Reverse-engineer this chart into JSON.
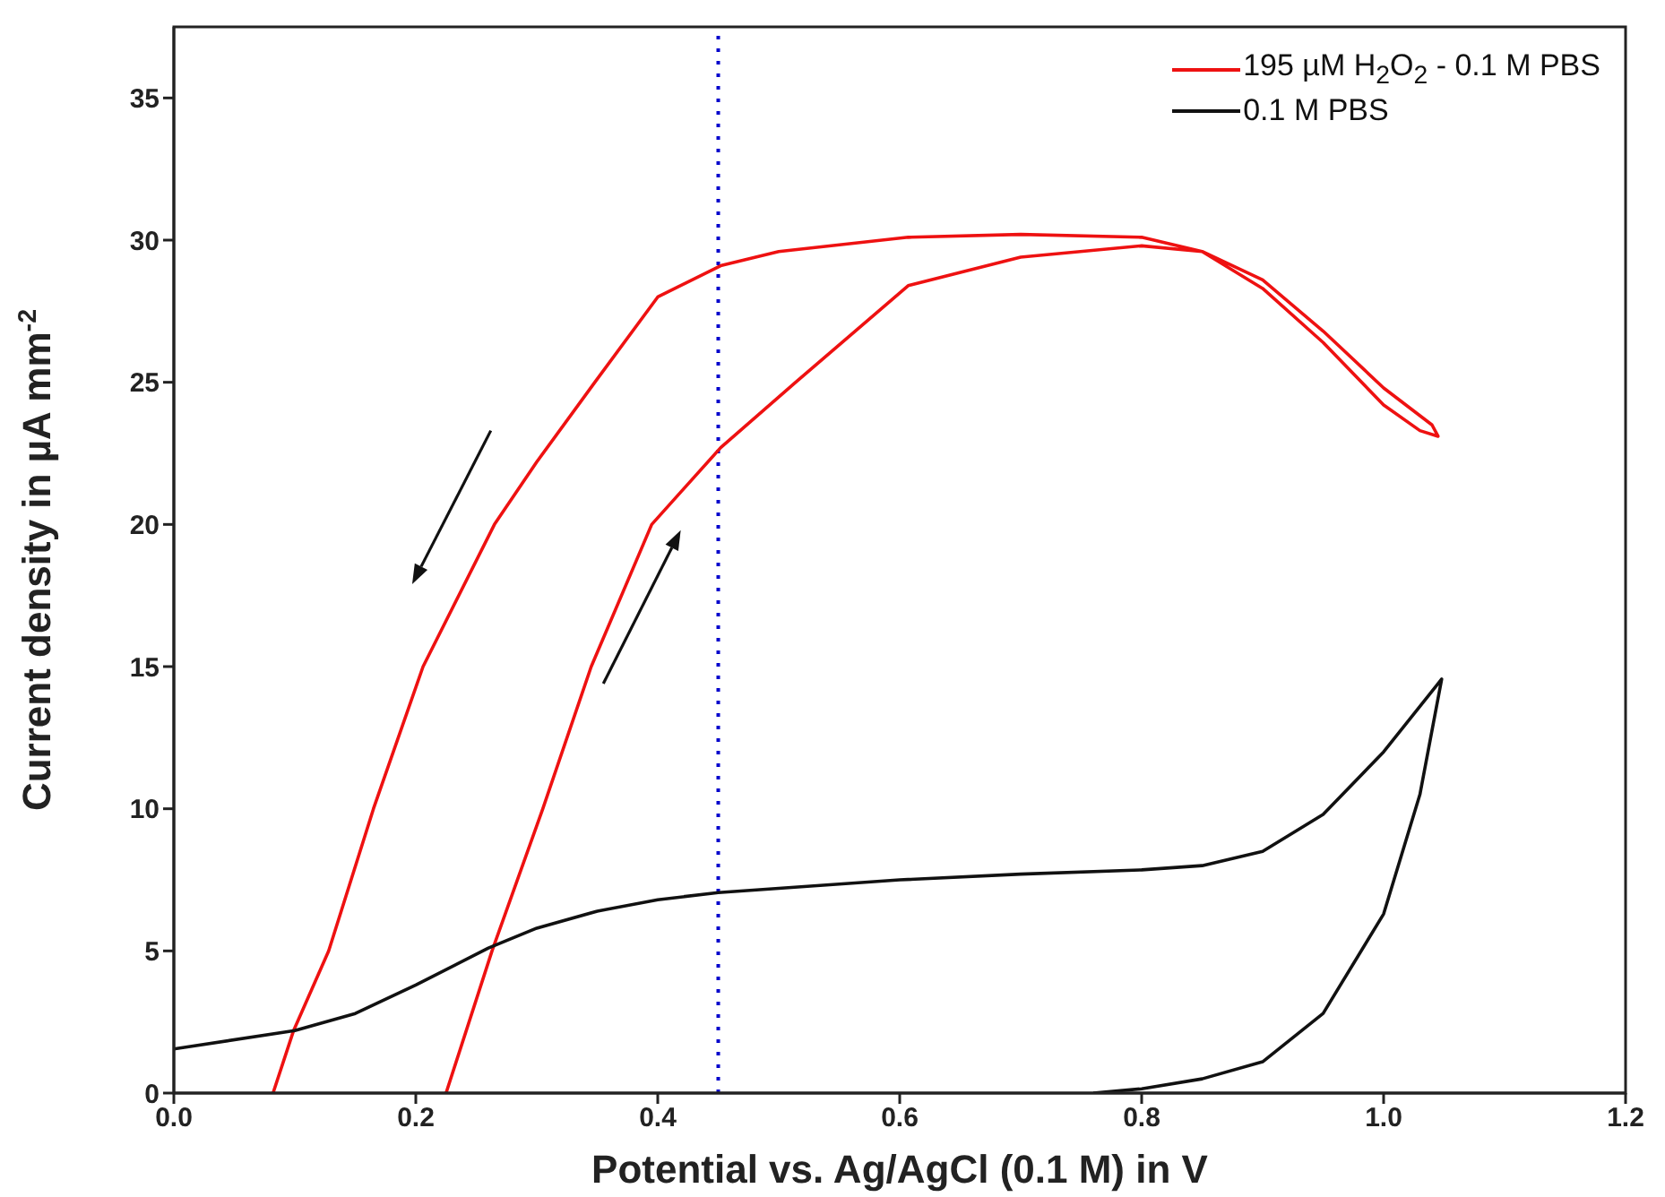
{
  "chart_data": {
    "type": "line",
    "xlabel": "Potential vs. Ag/AgCl (0.1 M) in V",
    "ylabel": "Current density in µA mm$^{-2}$",
    "xlim": [
      0,
      1.2
    ],
    "ylim": [
      0,
      37.5
    ],
    "xticks": [
      {
        "value": 0,
        "label": "0.0"
      },
      {
        "value": 0.2,
        "label": "0.2"
      },
      {
        "value": 0.4,
        "label": "0.4"
      },
      {
        "value": 0.6,
        "label": "0.6"
      },
      {
        "value": 0.8,
        "label": "0.8"
      },
      {
        "value": 1,
        "label": "1.0"
      },
      {
        "value": 1.2,
        "label": "1.2"
      }
    ],
    "yticks": [
      0,
      5,
      10,
      15,
      20,
      25,
      30,
      35
    ],
    "grid": false,
    "legend": "top right",
    "marker": "none",
    "line_style": "solid",
    "ref_lines": [
      {
        "axis": "x",
        "value": 0.45,
        "color": "#0000cc",
        "line_style": "dotted"
      }
    ],
    "series": [
      {
        "name": "195 µM H$_{2}$O$_{2}$ - 0.1 M PBS",
        "color": "#ee1111",
        "x": [
          0.225,
          0.263,
          0.305,
          0.345,
          0.395,
          0.452,
          0.514,
          0.607,
          0.7,
          0.8,
          0.85,
          0.9,
          0.95,
          1.0,
          1.03,
          1.045,
          1.04,
          1.0,
          0.95,
          0.9,
          0.85,
          0.8,
          0.7,
          0.607,
          0.5,
          0.452,
          0.4,
          0.348,
          0.3,
          0.265,
          0.206,
          0.165,
          0.128,
          0.099,
          0.082
        ],
        "values": [
          0,
          5,
          10,
          15,
          20,
          22.7,
          25,
          28.4,
          29.4,
          29.8,
          29.6,
          28.3,
          26.4,
          24.2,
          23.3,
          23.1,
          23.5,
          24.8,
          26.8,
          28.6,
          29.6,
          30.1,
          30.2,
          30.1,
          29.6,
          29.1,
          28.0,
          25,
          22.2,
          20,
          15,
          10,
          5,
          2.2,
          0
        ]
      },
      {
        "name": "0.1 M PBS",
        "color": "#111111",
        "x": [
          0,
          0.1,
          0.15,
          0.2,
          0.26,
          0.3,
          0.35,
          0.4,
          0.45,
          0.5,
          0.6,
          0.7,
          0.8,
          0.85,
          0.9,
          0.95,
          1.0,
          1.048,
          1.03,
          1.0,
          0.95,
          0.9,
          0.85,
          0.8,
          0.76
        ],
        "values": [
          1.55,
          2.2,
          2.8,
          3.8,
          5.1,
          5.8,
          6.4,
          6.8,
          7.05,
          7.2,
          7.5,
          7.7,
          7.85,
          8.0,
          8.5,
          9.8,
          12.0,
          14.56,
          10.5,
          6.3,
          2.8,
          1.1,
          0.5,
          0.15,
          0
        ]
      }
    ]
  }
}
